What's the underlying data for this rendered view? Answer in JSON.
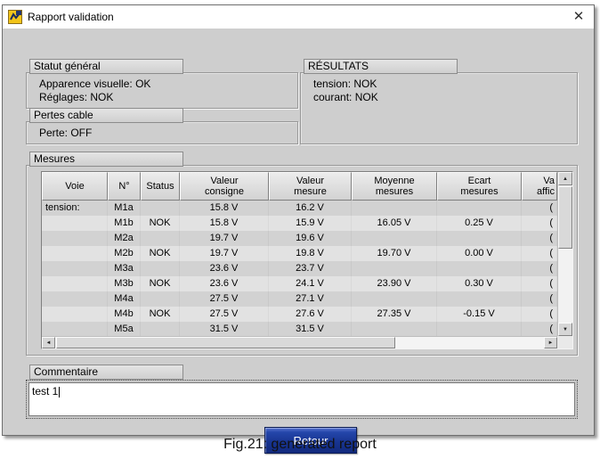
{
  "window": {
    "title": "Rapport validation",
    "close": "✕"
  },
  "statut": {
    "label": "Statut général",
    "lines": [
      "Apparence visuelle: OK",
      "Réglages: NOK"
    ]
  },
  "pertes": {
    "label": "Pertes cable",
    "lines": [
      "Perte: OFF"
    ]
  },
  "resultats": {
    "label": "RÉSULTATS",
    "lines": [
      "tension: NOK",
      "courant: NOK"
    ]
  },
  "mesures": {
    "label": "Mesures"
  },
  "table": {
    "columns": [
      "Voie",
      "N°",
      "Status",
      "Valeur\nconsigne",
      "Valeur\nmesure",
      "Moyenne\nmesures",
      "Ecart\nmesures",
      "Va\naffic"
    ],
    "rows": [
      [
        "tension:",
        "M1a",
        "",
        "15.8 V",
        "16.2 V",
        "",
        "",
        "("
      ],
      [
        "",
        "M1b",
        "NOK",
        "15.8 V",
        "15.9 V",
        "16.05 V",
        "0.25 V",
        "("
      ],
      [
        "",
        "M2a",
        "",
        "19.7 V",
        "19.6 V",
        "",
        "",
        "("
      ],
      [
        "",
        "M2b",
        "NOK",
        "19.7 V",
        "19.8 V",
        "19.70 V",
        "0.00 V",
        "("
      ],
      [
        "",
        "M3a",
        "",
        "23.6 V",
        "23.7 V",
        "",
        "",
        "("
      ],
      [
        "",
        "M3b",
        "NOK",
        "23.6 V",
        "24.1 V",
        "23.90 V",
        "0.30 V",
        "("
      ],
      [
        "",
        "M4a",
        "",
        "27.5 V",
        "27.1 V",
        "",
        "",
        "("
      ],
      [
        "",
        "M4b",
        "NOK",
        "27.5 V",
        "27.6 V",
        "27.35 V",
        "-0.15 V",
        "("
      ],
      [
        "",
        "M5a",
        "",
        "31.5 V",
        "31.5 V",
        "",
        "",
        "("
      ]
    ],
    "scroll": {
      "up": "▲",
      "down": "▼",
      "left": "◄",
      "right": "►"
    }
  },
  "commentaire": {
    "label": "Commentaire",
    "text": "test 1"
  },
  "retour_label": "Retour",
  "caption": "Fig.21: generated report"
}
